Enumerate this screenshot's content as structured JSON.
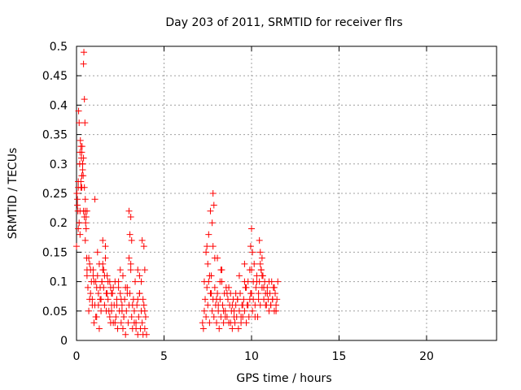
{
  "chart_data": {
    "type": "scatter",
    "title": "Day 203 of 2011, SRMTID for receiver flrs",
    "xlabel": "GPS time / hours",
    "ylabel": "SRMTID / TECUs",
    "xlim": [
      0,
      24
    ],
    "ylim": [
      0,
      0.5
    ],
    "xticks": [
      0,
      5,
      10,
      15,
      20
    ],
    "xtick_labels": [
      "0",
      "5",
      "10",
      "15",
      "20"
    ],
    "yticks": [
      0,
      0.05,
      0.1,
      0.15,
      0.2,
      0.25,
      0.3,
      0.35,
      0.4,
      0.45,
      0.5
    ],
    "ytick_labels": [
      "0",
      "0.05",
      "0.1",
      "0.15",
      "0.2",
      "0.25",
      "0.3",
      "0.35",
      "0.4",
      "0.45",
      "0.5"
    ],
    "grid": true,
    "marker": "plus",
    "color": "#ff0000",
    "series": [
      {
        "x": [
          0.0,
          0.02,
          0.05,
          0.08,
          0.1,
          0.12,
          0.15,
          0.18,
          0.2,
          0.22,
          0.25,
          0.28,
          0.3,
          0.32,
          0.35,
          0.38,
          0.4,
          0.42,
          0.45,
          0.48,
          0.5,
          0.52,
          0.55,
          0.58,
          0.6,
          0.05,
          0.1,
          0.15,
          0.2,
          0.25,
          0.3,
          0.35,
          0.4,
          0.45,
          0.5,
          0.55,
          0.6,
          0.1,
          0.2,
          0.3,
          0.4,
          0.5,
          0.25,
          0.35,
          0.45,
          0.6,
          0.65,
          0.7,
          0.75,
          0.8,
          0.85,
          0.9,
          0.95,
          1.0,
          1.05,
          1.1,
          1.15,
          1.2,
          1.25,
          1.3,
          1.35,
          1.4,
          1.45,
          1.5,
          1.55,
          1.6,
          1.65,
          1.7,
          1.75,
          1.8,
          1.85,
          1.9,
          1.95,
          2.0,
          0.7,
          0.8,
          0.9,
          1.0,
          1.1,
          1.2,
          1.3,
          1.4,
          1.5,
          1.6,
          1.7,
          1.8,
          1.9,
          2.0,
          0.75,
          0.95,
          1.15,
          1.35,
          1.55,
          1.75,
          1.95,
          1.25,
          1.45,
          1.65,
          1.05,
          1.5,
          2.0,
          2.05,
          2.1,
          2.15,
          2.2,
          2.25,
          2.3,
          2.35,
          2.4,
          2.45,
          2.5,
          2.55,
          2.6,
          2.65,
          2.7,
          2.75,
          2.8,
          2.85,
          2.9,
          2.95,
          3.0,
          3.05,
          3.1,
          3.15,
          3.2,
          3.25,
          3.3,
          3.35,
          3.4,
          3.45,
          3.5,
          3.55,
          3.6,
          3.65,
          3.7,
          3.75,
          3.8,
          3.85,
          3.9,
          3.95,
          4.0,
          2.1,
          2.3,
          2.5,
          2.7,
          2.9,
          3.1,
          3.3,
          3.5,
          3.7,
          3.9,
          2.2,
          2.4,
          2.6,
          2.8,
          3.0,
          3.2,
          3.4,
          3.6,
          3.8,
          3.0,
          3.05,
          3.1,
          3.15,
          3.5,
          3.6,
          3.75,
          3.85,
          3.9,
          2.55,
          2.65,
          7.2,
          7.25,
          7.3,
          7.35,
          7.4,
          7.45,
          7.5,
          7.55,
          7.6,
          7.65,
          7.7,
          7.75,
          7.8,
          7.85,
          7.9,
          7.95,
          8.0,
          8.05,
          8.1,
          8.15,
          8.2,
          8.25,
          8.3,
          8.35,
          8.4,
          8.45,
          8.5,
          8.55,
          8.6,
          8.65,
          8.7,
          8.75,
          8.8,
          8.85,
          8.9,
          8.95,
          9.0,
          7.3,
          7.5,
          7.7,
          7.9,
          8.1,
          8.3,
          8.5,
          8.7,
          8.9,
          7.4,
          7.6,
          7.8,
          8.0,
          8.2,
          8.4,
          8.6,
          8.8,
          7.45,
          7.55,
          7.65,
          7.75,
          7.8,
          7.85,
          8.05,
          8.25,
          9.0,
          9.05,
          9.1,
          9.15,
          9.2,
          9.25,
          9.3,
          9.35,
          9.4,
          9.45,
          9.5,
          9.55,
          9.6,
          9.65,
          9.7,
          9.75,
          9.8,
          9.85,
          9.9,
          9.95,
          10.0,
          10.05,
          10.1,
          10.15,
          10.2,
          10.25,
          10.3,
          10.35,
          10.4,
          10.45,
          10.5,
          10.55,
          10.6,
          10.65,
          10.7,
          10.75,
          10.8,
          10.85,
          10.9,
          10.95,
          11.0,
          11.05,
          11.1,
          11.15,
          11.2,
          11.25,
          11.3,
          11.35,
          11.4,
          11.45,
          11.5,
          9.1,
          9.3,
          9.5,
          9.7,
          9.9,
          10.1,
          10.3,
          10.5,
          10.7,
          10.9,
          11.1,
          11.3,
          9.2,
          9.4,
          9.6,
          9.8,
          10.0,
          10.2,
          10.4,
          10.6,
          10.8,
          11.0,
          11.2,
          11.4,
          9.95,
          10.0,
          10.05,
          10.45,
          10.5,
          10.55,
          10.6,
          9.6
        ],
        "y": [
          0.16,
          0.25,
          0.23,
          0.22,
          0.26,
          0.39,
          0.37,
          0.3,
          0.32,
          0.34,
          0.27,
          0.31,
          0.26,
          0.33,
          0.3,
          0.28,
          0.47,
          0.49,
          0.41,
          0.37,
          0.22,
          0.2,
          0.19,
          0.14,
          0.22,
          0.24,
          0.27,
          0.2,
          0.18,
          0.33,
          0.32,
          0.29,
          0.22,
          0.26,
          0.24,
          0.21,
          0.12,
          0.19,
          0.22,
          0.28,
          0.31,
          0.17,
          0.26,
          0.3,
          0.21,
          0.11,
          0.09,
          0.05,
          0.13,
          0.08,
          0.1,
          0.07,
          0.12,
          0.1,
          0.06,
          0.04,
          0.09,
          0.11,
          0.08,
          0.13,
          0.07,
          0.05,
          0.1,
          0.12,
          0.09,
          0.06,
          0.14,
          0.08,
          0.11,
          0.07,
          0.05,
          0.1,
          0.09,
          0.08,
          0.14,
          0.12,
          0.06,
          0.03,
          0.1,
          0.15,
          0.02,
          0.07,
          0.13,
          0.11,
          0.05,
          0.1,
          0.04,
          0.06,
          0.07,
          0.11,
          0.04,
          0.09,
          0.12,
          0.08,
          0.03,
          0.06,
          0.1,
          0.16,
          0.24,
          0.17,
          0.05,
          0.08,
          0.03,
          0.06,
          0.1,
          0.04,
          0.07,
          0.02,
          0.09,
          0.05,
          0.08,
          0.03,
          0.06,
          0.11,
          0.04,
          0.07,
          0.01,
          0.05,
          0.09,
          0.03,
          0.06,
          0.08,
          0.12,
          0.04,
          0.02,
          0.07,
          0.05,
          0.1,
          0.03,
          0.06,
          0.01,
          0.04,
          0.08,
          0.02,
          0.05,
          0.03,
          0.01,
          0.06,
          0.02,
          0.04,
          0.01,
          0.09,
          0.06,
          0.12,
          0.04,
          0.08,
          0.13,
          0.03,
          0.07,
          0.1,
          0.05,
          0.03,
          0.1,
          0.05,
          0.09,
          0.14,
          0.06,
          0.02,
          0.11,
          0.07,
          0.22,
          0.18,
          0.21,
          0.17,
          0.12,
          0.08,
          0.17,
          0.16,
          0.12,
          0.07,
          0.02,
          0.03,
          0.02,
          0.05,
          0.07,
          0.04,
          0.09,
          0.06,
          0.1,
          0.03,
          0.08,
          0.11,
          0.05,
          0.07,
          0.04,
          0.09,
          0.06,
          0.03,
          0.08,
          0.05,
          0.02,
          0.07,
          0.04,
          0.1,
          0.06,
          0.03,
          0.08,
          0.05,
          0.09,
          0.04,
          0.07,
          0.03,
          0.06,
          0.08,
          0.05,
          0.02,
          0.07,
          0.04,
          0.1,
          0.13,
          0.08,
          0.14,
          0.06,
          0.12,
          0.04,
          0.09,
          0.06,
          0.15,
          0.11,
          0.16,
          0.07,
          0.1,
          0.05,
          0.08,
          0.03,
          0.16,
          0.18,
          0.22,
          0.2,
          0.25,
          0.23,
          0.14,
          0.12,
          0.05,
          0.03,
          0.06,
          0.04,
          0.07,
          0.02,
          0.05,
          0.08,
          0.03,
          0.06,
          0.04,
          0.07,
          0.05,
          0.09,
          0.03,
          0.06,
          0.1,
          0.04,
          0.07,
          0.08,
          0.12,
          0.05,
          0.1,
          0.13,
          0.06,
          0.09,
          0.11,
          0.04,
          0.08,
          0.1,
          0.06,
          0.12,
          0.09,
          0.11,
          0.07,
          0.1,
          0.08,
          0.06,
          0.09,
          0.07,
          0.05,
          0.08,
          0.06,
          0.1,
          0.07,
          0.09,
          0.05,
          0.08,
          0.06,
          0.07,
          0.1,
          0.08,
          0.11,
          0.06,
          0.09,
          0.12,
          0.07,
          0.1,
          0.13,
          0.09,
          0.08,
          0.06,
          0.09,
          0.07,
          0.04,
          0.1,
          0.06,
          0.08,
          0.04,
          0.07,
          0.11,
          0.06,
          0.1,
          0.07,
          0.05,
          0.16,
          0.19,
          0.15,
          0.17,
          0.15,
          0.12,
          0.14,
          0.13
        ]
      }
    ]
  }
}
